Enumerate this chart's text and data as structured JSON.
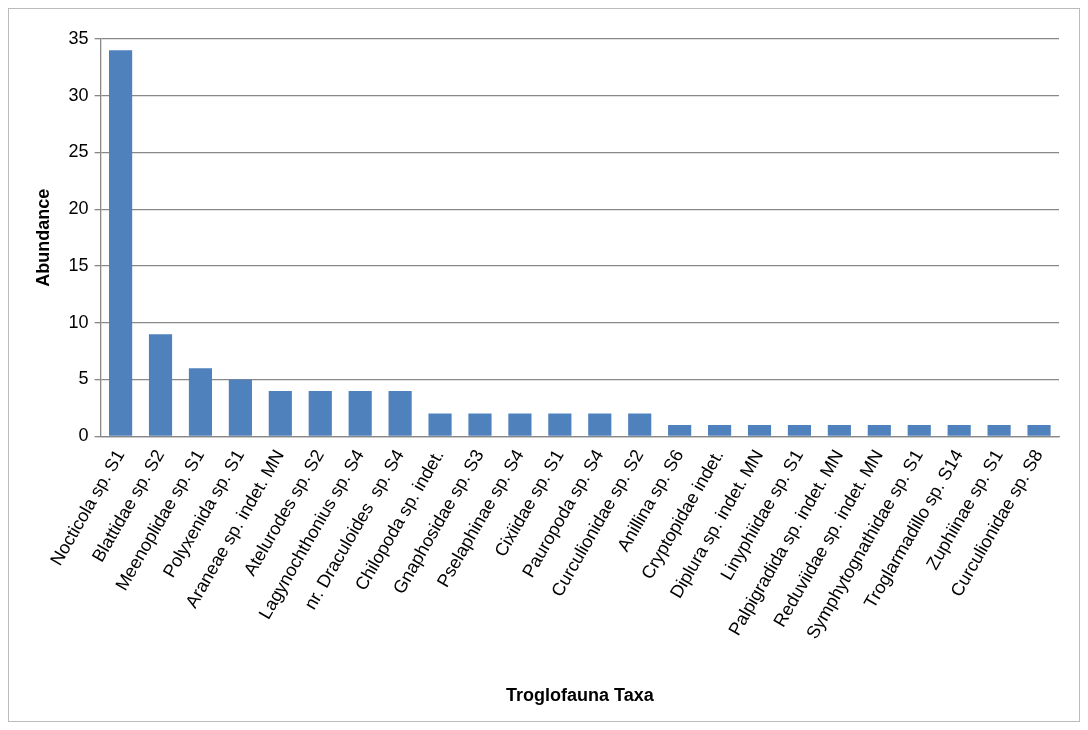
{
  "chart_data": {
    "type": "bar",
    "xlabel": "Troglofauna Taxa",
    "ylabel": "Abundance",
    "categories": [
      "Nocticola sp. S1",
      "Blattidae sp. S2",
      "Meenoplidae sp. S1",
      "Polyxenida sp. S1",
      "Araneae sp. indet. MN",
      "Atelurodes sp. S2",
      "Lagynochthonius sp. S4",
      "nr. Draculoides  sp. S4",
      "Chilopoda sp. indet.",
      "Gnaphosidae sp. S3",
      "Pselaphinae sp. S4",
      "Cixiidae sp. S1",
      "Pauropoda sp. S4",
      "Curculionidae sp. S2",
      "Anillina sp. S6",
      "Cryptopidae indet.",
      "Diplura sp. indet. MN",
      "Linyphiidae sp. S1",
      "Palpigradida sp. indet. MN",
      "Reduviidae sp. indet. MN",
      "Symphytognathidae sp. S1",
      "Troglarmadillo sp. S14",
      "Zuphiinae sp. S1",
      "Curculionidae sp. S8"
    ],
    "values": [
      34,
      9,
      6,
      5,
      4,
      4,
      4,
      4,
      2,
      2,
      2,
      2,
      2,
      2,
      1,
      1,
      1,
      1,
      1,
      1,
      1,
      1,
      1,
      1
    ],
    "color": "#4f81bd",
    "ylim": [
      0,
      35
    ],
    "yticks": [
      0,
      5,
      10,
      15,
      20,
      25,
      30,
      35
    ],
    "grid": "y",
    "legend": false
  }
}
